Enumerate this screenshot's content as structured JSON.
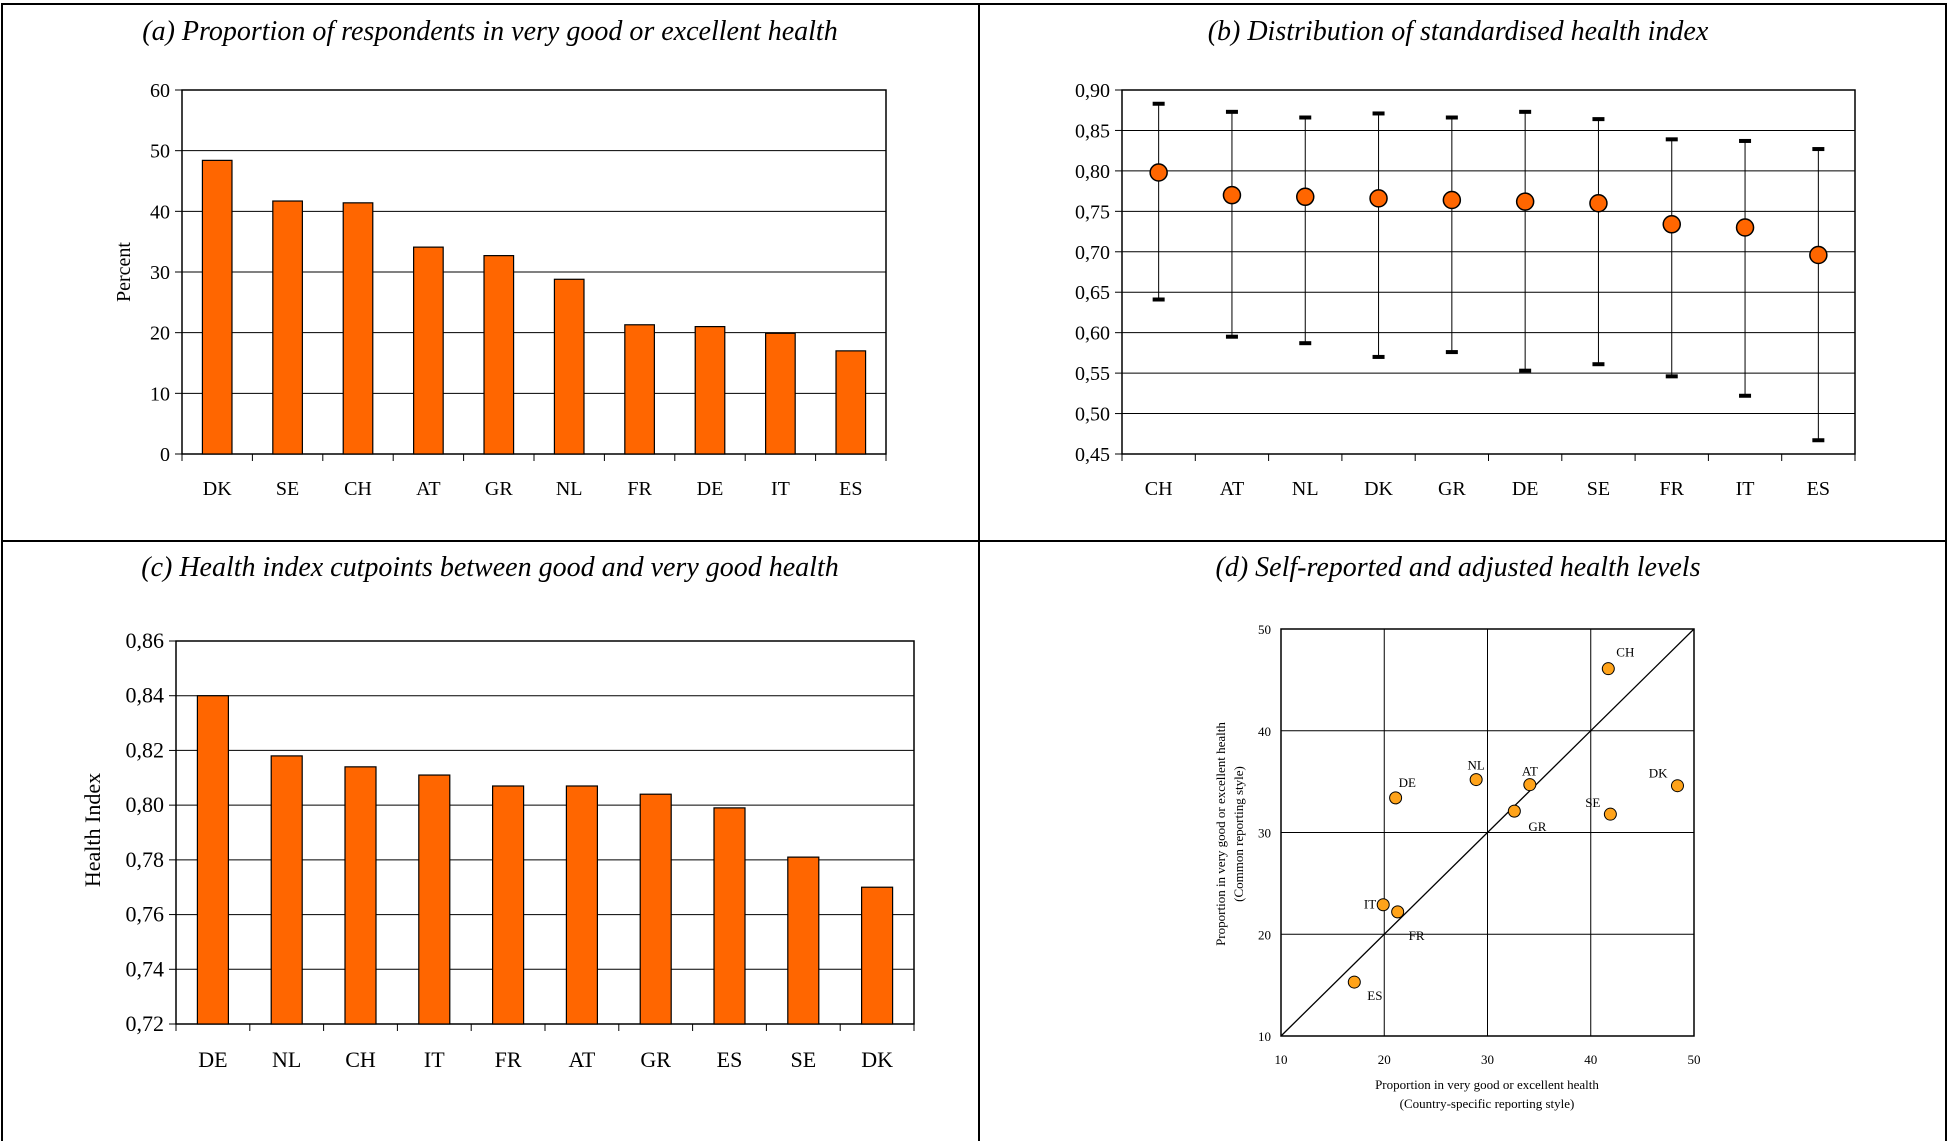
{
  "chart_data": [
    {
      "id": "a",
      "type": "bar",
      "title": "(a) Proportion of respondents in very good or excellent health",
      "ylabel": "Percent",
      "xlabel": "",
      "ylim": [
        0,
        60
      ],
      "yticks": [
        "0",
        "10",
        "20",
        "30",
        "40",
        "50",
        "60"
      ],
      "categories": [
        "DK",
        "SE",
        "CH",
        "AT",
        "GR",
        "NL",
        "FR",
        "DE",
        "IT",
        "ES"
      ],
      "values": [
        48.4,
        41.7,
        41.4,
        34.1,
        32.7,
        28.8,
        21.3,
        21.0,
        19.9,
        17.0
      ],
      "grid": true,
      "color": "#ff6600"
    },
    {
      "id": "b",
      "type": "scatter",
      "subtype": "dot-range",
      "title": "(b) Distribution of standardised health index",
      "ylabel": "",
      "xlabel": "",
      "ylim": [
        0.45,
        0.9
      ],
      "yticks": [
        "0,45",
        "0,50",
        "0,55",
        "0,60",
        "0,65",
        "0,70",
        "0,75",
        "0,80",
        "0,85",
        "0,90"
      ],
      "categories": [
        "CH",
        "AT",
        "NL",
        "DK",
        "GR",
        "DE",
        "SE",
        "FR",
        "IT",
        "ES"
      ],
      "values": [
        0.798,
        0.77,
        0.768,
        0.766,
        0.764,
        0.762,
        0.76,
        0.734,
        0.73,
        0.696
      ],
      "upper": [
        0.883,
        0.873,
        0.866,
        0.871,
        0.866,
        0.873,
        0.864,
        0.839,
        0.837,
        0.827
      ],
      "lower": [
        0.641,
        0.595,
        0.587,
        0.57,
        0.576,
        0.553,
        0.561,
        0.546,
        0.522,
        0.467
      ],
      "grid": true,
      "color": "#ff6600"
    },
    {
      "id": "c",
      "type": "bar",
      "title": "(c) Health index cutpoints between good and very good health",
      "ylabel": "Health Index",
      "xlabel": "",
      "ylim": [
        0.72,
        0.86
      ],
      "yticks": [
        "0,72",
        "0,74",
        "0,76",
        "0,78",
        "0,80",
        "0,82",
        "0,84",
        "0,86"
      ],
      "categories": [
        "DE",
        "NL",
        "CH",
        "IT",
        "FR",
        "AT",
        "GR",
        "ES",
        "SE",
        "DK"
      ],
      "values": [
        0.84,
        0.818,
        0.814,
        0.811,
        0.807,
        0.807,
        0.804,
        0.799,
        0.781,
        0.77
      ],
      "grid": true,
      "color": "#ff6600"
    },
    {
      "id": "d",
      "type": "scatter",
      "title": "(d) Self-reported and adjusted health levels",
      "xlabel": "Proportion in very good or excellent health",
      "xlabel2": "(Country-specific reporting style)",
      "ylabel": "Proportion in very good or excellent health",
      "ylabel2": "(Common reporting style)",
      "xlim": [
        10,
        50
      ],
      "ylim": [
        10,
        50
      ],
      "xticks": [
        "10",
        "20",
        "30",
        "40",
        "50"
      ],
      "yticks": [
        "10",
        "20",
        "30",
        "40",
        "50"
      ],
      "diagonal": true,
      "grid": true,
      "color": "#ffa31a",
      "points": [
        {
          "label": "CH",
          "x": 41.7,
          "y": 46.1
        },
        {
          "label": "DK",
          "x": 48.4,
          "y": 34.6
        },
        {
          "label": "SE",
          "x": 41.9,
          "y": 31.8
        },
        {
          "label": "AT",
          "x": 34.1,
          "y": 34.7
        },
        {
          "label": "GR",
          "x": 32.6,
          "y": 32.1
        },
        {
          "label": "NL",
          "x": 28.9,
          "y": 35.2
        },
        {
          "label": "DE",
          "x": 21.1,
          "y": 33.4
        },
        {
          "label": "IT",
          "x": 19.9,
          "y": 22.9
        },
        {
          "label": "FR",
          "x": 21.3,
          "y": 22.2
        },
        {
          "label": "ES",
          "x": 17.1,
          "y": 15.3
        }
      ]
    }
  ]
}
